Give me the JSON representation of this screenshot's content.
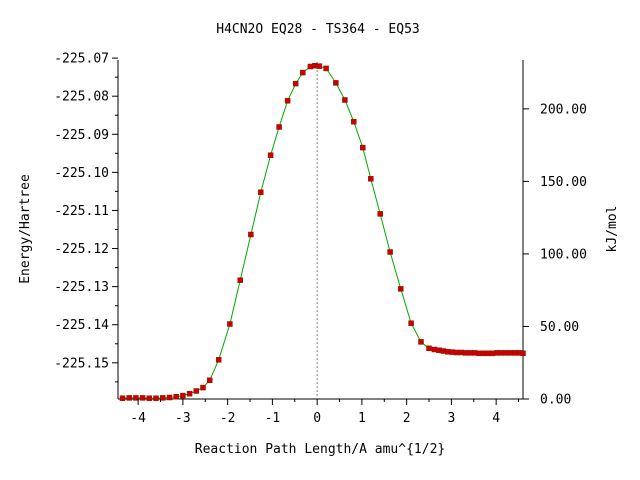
{
  "chart_data": {
    "type": "line",
    "title": "H4CN2O    EQ28 - TS364 - EQ53",
    "xlabel": "Reaction Path Length/A amu^{1/2}",
    "ylabel": "Energy/Hartree",
    "y2label": "kJ/mol",
    "xlim": [
      -4.45,
      4.6
    ],
    "ylim": [
      -225.1595,
      -225.0705
    ],
    "x_ticks": [
      "-4",
      "-3",
      "-2",
      "-1",
      "0",
      "1",
      "2",
      "3",
      "4"
    ],
    "x_tick_values": [
      -4,
      -3,
      -2,
      -1,
      0,
      1,
      2,
      3,
      4
    ],
    "y_ticks": [
      "-225.07",
      "-225.08",
      "-225.09",
      "-225.10",
      "-225.11",
      "-225.12",
      "-225.13",
      "-225.14",
      "-225.15"
    ],
    "y_tick_values": [
      -225.07,
      -225.08,
      -225.09,
      -225.1,
      -225.11,
      -225.12,
      -225.13,
      -225.14,
      -225.15
    ],
    "y2_ticks": [
      "0.00",
      "50.00",
      "100.00",
      "150.00",
      "200.00"
    ],
    "y2_tick_values": [
      0,
      50,
      100,
      150,
      200
    ],
    "y2_zero_hartree": -225.1595,
    "hartree_to_kj": 2625.5,
    "ts_x": 0,
    "grid": false,
    "legend": "none",
    "colors": {
      "line": "#00aa00",
      "marker": "#cc0000",
      "ts_line": "#888888",
      "axis": "#000000"
    },
    "series": [
      {
        "x": [
          -4.35,
          -4.2,
          -4.05,
          -3.9,
          -3.75,
          -3.6,
          -3.45,
          -3.3,
          -3.15,
          -3.0,
          -2.85,
          -2.7,
          -2.55,
          -2.4,
          -2.2,
          -1.95,
          -1.72,
          -1.48,
          -1.26,
          -1.04,
          -0.85,
          -0.66,
          -0.48,
          -0.32,
          -0.15,
          -0.05,
          0.05,
          0.2,
          0.42,
          0.62,
          0.82,
          1.02,
          1.2,
          1.41,
          1.63,
          1.87,
          2.1,
          2.32,
          2.5,
          2.62,
          2.72,
          2.82,
          2.92,
          3.02,
          3.12,
          3.22,
          3.32,
          3.42,
          3.52,
          3.62,
          3.72,
          3.82,
          3.92,
          4.02,
          4.12,
          4.22,
          4.32,
          4.42,
          4.52,
          4.6
        ],
        "y": [
          -225.1593,
          -225.1592,
          -225.1592,
          -225.1592,
          -225.1593,
          -225.1593,
          -225.1592,
          -225.1591,
          -225.1589,
          -225.1586,
          -225.1581,
          -225.1574,
          -225.1565,
          -225.1546,
          -225.1492,
          -225.1398,
          -225.1283,
          -225.1163,
          -225.1052,
          -225.0955,
          -225.0881,
          -225.0812,
          -225.0767,
          -225.0738,
          -225.0722,
          -225.072,
          -225.0721,
          -225.0727,
          -225.0765,
          -225.081,
          -225.0867,
          -225.0935,
          -225.1017,
          -225.1109,
          -225.1209,
          -225.1306,
          -225.1396,
          -225.1445,
          -225.1462,
          -225.1465,
          -225.1467,
          -225.1469,
          -225.1471,
          -225.1472,
          -225.1473,
          -225.1473,
          -225.1474,
          -225.1474,
          -225.1474,
          -225.1475,
          -225.1475,
          -225.1475,
          -225.1475,
          -225.1474,
          -225.1474,
          -225.1474,
          -225.1474,
          -225.1474,
          -225.1474,
          -225.1475
        ]
      }
    ]
  }
}
